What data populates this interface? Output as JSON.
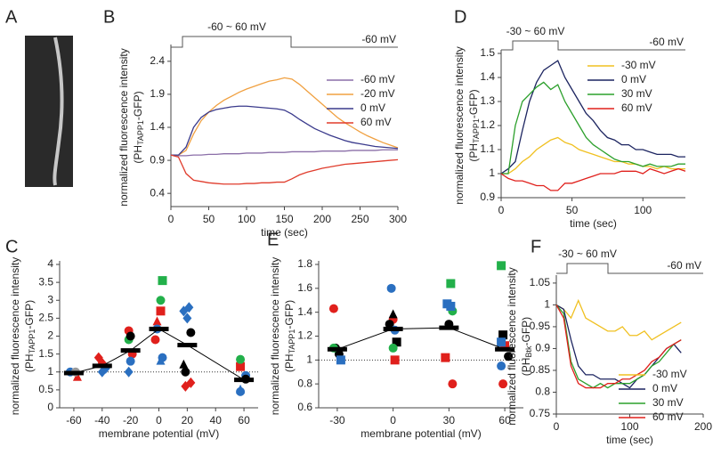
{
  "chart_data": [
    {
      "type": "image",
      "panel": "A"
    },
    {
      "type": "line",
      "panel": "B",
      "protocol": {
        "step_label": "-60 ~ 60 mV",
        "hold_label": "-60 mV"
      },
      "ylabel": {
        "line1": "normalized fluorescence intensity",
        "prefix": "(PH",
        "subscript": "TAPP1",
        "suffix": "-GFP)"
      },
      "xlabel": "time (sec)",
      "x": [
        0,
        10,
        20,
        30,
        40,
        50,
        60,
        70,
        80,
        90,
        100,
        110,
        120,
        130,
        140,
        150,
        160,
        170,
        180,
        190,
        200,
        210,
        220,
        230,
        240,
        250,
        260,
        270,
        280,
        290,
        300
      ],
      "series": [
        {
          "name": "-60 mV",
          "color": "#8b6fa8",
          "values": [
            0.98,
            0.97,
            0.97,
            0.98,
            0.98,
            0.99,
            0.99,
            1.0,
            1.0,
            1.0,
            1.01,
            1.01,
            1.01,
            1.02,
            1.02,
            1.02,
            1.03,
            1.03,
            1.03,
            1.03,
            1.04,
            1.04,
            1.04,
            1.04,
            1.05,
            1.05,
            1.05,
            1.05,
            1.06,
            1.06,
            1.06
          ]
        },
        {
          "name": "-20 mV",
          "color": "#f0a040",
          "values": [
            0.98,
            0.98,
            1.05,
            1.3,
            1.5,
            1.63,
            1.73,
            1.81,
            1.87,
            1.93,
            1.98,
            2.02,
            2.06,
            2.1,
            2.12,
            2.15,
            2.13,
            2.05,
            1.95,
            1.85,
            1.75,
            1.65,
            1.55,
            1.47,
            1.4,
            1.33,
            1.27,
            1.22,
            1.17,
            1.13,
            1.09
          ]
        },
        {
          "name": "0 mV",
          "color": "#3a3a8c",
          "values": [
            0.98,
            0.98,
            1.1,
            1.4,
            1.55,
            1.63,
            1.67,
            1.69,
            1.71,
            1.72,
            1.72,
            1.71,
            1.7,
            1.69,
            1.68,
            1.66,
            1.6,
            1.52,
            1.45,
            1.38,
            1.33,
            1.28,
            1.24,
            1.2,
            1.17,
            1.15,
            1.13,
            1.11,
            1.1,
            1.09,
            1.08
          ]
        },
        {
          "name": "60 mV",
          "color": "#e03c2c",
          "values": [
            0.98,
            0.95,
            0.7,
            0.6,
            0.58,
            0.56,
            0.55,
            0.54,
            0.54,
            0.54,
            0.55,
            0.55,
            0.56,
            0.56,
            0.57,
            0.57,
            0.62,
            0.68,
            0.72,
            0.75,
            0.78,
            0.8,
            0.82,
            0.84,
            0.85,
            0.86,
            0.87,
            0.88,
            0.89,
            0.9,
            0.91
          ]
        }
      ],
      "xlim": [
        0,
        300
      ],
      "xticks": [
        0,
        50,
        100,
        150,
        200,
        250,
        300
      ],
      "ylim": [
        0.2,
        2.6
      ],
      "yticks": [
        0.4,
        0.9,
        1.4,
        1.9,
        2.4
      ],
      "legend": "right"
    },
    {
      "type": "line",
      "panel": "D",
      "protocol": {
        "step_label": "-30 ~ 60 mV",
        "hold_label": "-60 mV"
      },
      "ylabel": {
        "line1": "normalized fluorescence intensity",
        "prefix": "(PH",
        "subscript": "TAPP1",
        "suffix": "-GFP)"
      },
      "xlabel": "time (sec)",
      "x": [
        0,
        5,
        10,
        15,
        20,
        25,
        30,
        35,
        40,
        45,
        50,
        55,
        60,
        65,
        70,
        75,
        80,
        85,
        90,
        95,
        100,
        105,
        110,
        115,
        120,
        125,
        130
      ],
      "series": [
        {
          "name": "-30 mV",
          "color": "#f0c020",
          "values": [
            1.0,
            1.0,
            1.02,
            1.05,
            1.07,
            1.1,
            1.12,
            1.14,
            1.15,
            1.13,
            1.12,
            1.1,
            1.09,
            1.08,
            1.07,
            1.06,
            1.05,
            1.05,
            1.04,
            1.04,
            1.03,
            1.03,
            1.02,
            1.03,
            1.02,
            1.02,
            1.02
          ]
        },
        {
          "name": "0 mV",
          "color": "#1c2460",
          "values": [
            1.0,
            1.02,
            1.05,
            1.18,
            1.3,
            1.38,
            1.43,
            1.45,
            1.47,
            1.4,
            1.35,
            1.3,
            1.25,
            1.22,
            1.18,
            1.15,
            1.14,
            1.12,
            1.12,
            1.1,
            1.1,
            1.09,
            1.08,
            1.08,
            1.08,
            1.07,
            1.07
          ]
        },
        {
          "name": "30 mV",
          "color": "#2ca02c",
          "values": [
            1.0,
            1.0,
            1.2,
            1.3,
            1.33,
            1.36,
            1.38,
            1.35,
            1.37,
            1.3,
            1.25,
            1.2,
            1.15,
            1.12,
            1.1,
            1.08,
            1.06,
            1.05,
            1.05,
            1.04,
            1.03,
            1.04,
            1.03,
            1.03,
            1.03,
            1.04,
            1.04
          ]
        },
        {
          "name": "60 mV",
          "color": "#e0201c",
          "values": [
            1.0,
            0.98,
            0.97,
            0.97,
            0.96,
            0.95,
            0.95,
            0.93,
            0.93,
            0.96,
            0.96,
            0.97,
            0.98,
            0.99,
            1.0,
            1.0,
            1.0,
            1.01,
            1.01,
            1.01,
            1.0,
            1.02,
            1.01,
            1.0,
            1.01,
            1.02,
            1.01
          ]
        }
      ],
      "xlim": [
        0,
        130
      ],
      "xticks": [
        0,
        50,
        100
      ],
      "ylim": [
        0.9,
        1.5
      ],
      "yticks": [
        0.9,
        1,
        1.1,
        1.2,
        1.3,
        1.4,
        1.5
      ],
      "legend": "upper right"
    },
    {
      "type": "scatter",
      "panel": "C",
      "ylabel": {
        "line1": "normalized fluorescence intensity",
        "prefix": "(PH",
        "subscript": "TAPP1",
        "suffix": "-GFP)"
      },
      "xlabel": "membrane potential (mV)",
      "series": [
        {
          "color": "#e0201c",
          "marker": "diamond",
          "x": [
            -40,
            -40,
            20,
            20
          ],
          "values": [
            1.4,
            1.25,
            0.7,
            0.6
          ]
        },
        {
          "color": "#e0201c",
          "marker": "square",
          "x": [
            0,
            60
          ],
          "values": [
            2.7,
            1.15
          ]
        },
        {
          "color": "#e0201c",
          "marker": "circle",
          "x": [
            -20,
            -20,
            0
          ],
          "values": [
            2.15,
            1.5,
            1.9
          ]
        },
        {
          "color": "#e0201c",
          "marker": "triangle",
          "x": [
            -60,
            0
          ],
          "values": [
            0.85,
            2.4
          ]
        },
        {
          "color": "#2a6fc0",
          "marker": "diamond",
          "x": [
            -40,
            -40,
            -20,
            20,
            20,
            20
          ],
          "values": [
            1.0,
            1.1,
            1.0,
            2.8,
            2.7,
            2.5
          ]
        },
        {
          "color": "#2a6fc0",
          "marker": "circle",
          "x": [
            -60,
            -20,
            0,
            0,
            60,
            60
          ],
          "values": [
            1.0,
            1.3,
            1.4,
            2.2,
            0.9,
            0.45
          ]
        },
        {
          "color": "#2a6fc0",
          "marker": "triangle",
          "x": [
            0,
            60
          ],
          "values": [
            1.3,
            0.5
          ]
        },
        {
          "color": "#22b04a",
          "marker": "circle",
          "x": [
            -20,
            0,
            60
          ],
          "values": [
            1.9,
            3.0,
            1.35
          ]
        },
        {
          "color": "#22b04a",
          "marker": "square",
          "x": [
            0
          ],
          "values": [
            3.55
          ]
        },
        {
          "color": "#000000",
          "marker": "circle",
          "x": [
            -20,
            20,
            20,
            60
          ],
          "values": [
            2.0,
            2.1,
            1.0,
            0.8
          ]
        },
        {
          "color": "#000000",
          "marker": "triangle",
          "x": [
            20
          ],
          "values": [
            1.2
          ]
        },
        {
          "color": "#999999",
          "marker": "circle",
          "x": [
            -60
          ],
          "values": [
            1.0
          ]
        },
        {
          "color": "#000000",
          "marker": "bar",
          "x": [
            -60,
            -40,
            -20,
            0,
            20,
            60
          ],
          "values": [
            0.97,
            1.17,
            1.6,
            2.2,
            1.75,
            0.78
          ]
        }
      ],
      "ref_line": 1,
      "xlim": [
        -70,
        70
      ],
      "xticks": [
        -60,
        -40,
        -20,
        0,
        20,
        40,
        60
      ],
      "ylim": [
        0,
        4
      ],
      "yticks": [
        0,
        0.5,
        1,
        1.5,
        2,
        2.5,
        3,
        3.5,
        4
      ]
    },
    {
      "type": "scatter",
      "panel": "E",
      "ylabel": {
        "line1": "normalized fluorescence intensity",
        "prefix": "(PH",
        "subscript": "TAPP1",
        "suffix": "-GFP)"
      },
      "xlabel": "membrane potential (mV)",
      "series": [
        {
          "color": "#e0201c",
          "marker": "circle",
          "x": [
            -30,
            0,
            30,
            60
          ],
          "values": [
            1.43,
            1.34,
            0.8,
            0.8
          ]
        },
        {
          "color": "#e0201c",
          "marker": "square",
          "x": [
            0,
            30,
            60
          ],
          "values": [
            1.0,
            1.02,
            1.12
          ]
        },
        {
          "color": "#000000",
          "marker": "circle",
          "x": [
            -30,
            -30,
            0,
            30,
            60
          ],
          "values": [
            1.1,
            1.05,
            1.3,
            1.3,
            1.03
          ]
        },
        {
          "color": "#000000",
          "marker": "square",
          "x": [
            0,
            60
          ],
          "values": [
            1.15,
            1.21
          ]
        },
        {
          "color": "#000000",
          "marker": "triangle",
          "x": [
            0
          ],
          "values": [
            1.38
          ]
        },
        {
          "color": "#22b04a",
          "marker": "circle",
          "x": [
            -30,
            0,
            30
          ],
          "values": [
            1.1,
            1.1,
            1.41
          ]
        },
        {
          "color": "#22b04a",
          "marker": "square",
          "x": [
            30,
            60
          ],
          "values": [
            1.64,
            1.79
          ]
        },
        {
          "color": "#2a6fc0",
          "marker": "circle",
          "x": [
            0,
            0,
            60
          ],
          "values": [
            1.6,
            1.25,
            0.95
          ]
        },
        {
          "color": "#2a6fc0",
          "marker": "square",
          "x": [
            -30,
            30,
            30,
            60
          ],
          "values": [
            1.0,
            1.47,
            1.45,
            1.15
          ]
        },
        {
          "color": "#000000",
          "marker": "bar",
          "x": [
            -30,
            0,
            30,
            60
          ],
          "values": [
            1.09,
            1.26,
            1.27,
            1.09
          ]
        }
      ],
      "ref_line": 1,
      "xlim": [
        -40,
        70
      ],
      "xticks": [
        -30,
        0,
        30,
        60
      ],
      "ylim": [
        0.6,
        1.8
      ],
      "yticks": [
        0.6,
        0.8,
        1,
        1.2,
        1.4,
        1.6,
        1.8
      ]
    },
    {
      "type": "line",
      "panel": "F",
      "protocol": {
        "step_label": "-30 ~ 60 mV",
        "hold_label": "-60 mV"
      },
      "ylabel": {
        "line1": "normalized fluorescence intensity",
        "prefix": "(PH",
        "subscript": "Btk",
        "suffix": "-GFP)"
      },
      "xlabel": "time (sec)",
      "x": [
        0,
        10,
        20,
        30,
        40,
        50,
        60,
        70,
        80,
        90,
        100,
        110,
        120,
        130,
        140,
        150,
        160,
        170
      ],
      "series": [
        {
          "name": "-30 mV",
          "color": "#f0c020",
          "values": [
            1.0,
            0.99,
            0.97,
            1.01,
            0.97,
            0.96,
            0.95,
            0.94,
            0.94,
            0.95,
            0.93,
            0.93,
            0.94,
            0.92,
            0.93,
            0.94,
            0.95,
            0.96
          ]
        },
        {
          "name": "0 mV",
          "color": "#1c2460",
          "values": [
            1.0,
            0.99,
            0.92,
            0.86,
            0.84,
            0.84,
            0.83,
            0.83,
            0.83,
            0.82,
            0.81,
            0.83,
            0.84,
            0.86,
            0.88,
            0.9,
            0.91,
            0.89
          ]
        },
        {
          "name": "30 mV",
          "color": "#2ca02c",
          "values": [
            1.0,
            0.98,
            0.87,
            0.83,
            0.82,
            0.81,
            0.82,
            0.81,
            0.82,
            0.82,
            0.82,
            0.83,
            0.84,
            0.86,
            0.87,
            0.89,
            0.91,
            0.92
          ]
        },
        {
          "name": "60 mV",
          "color": "#e0201c",
          "values": [
            1.0,
            0.97,
            0.86,
            0.82,
            0.81,
            0.81,
            0.81,
            0.82,
            0.82,
            0.83,
            0.83,
            0.84,
            0.85,
            0.87,
            0.88,
            0.9,
            0.91,
            0.92
          ]
        }
      ],
      "xlim": [
        0,
        200
      ],
      "xticks": [
        0,
        100,
        200
      ],
      "ylim": [
        0.75,
        1.06
      ],
      "yticks": [
        0.75,
        0.8,
        0.85,
        0.9,
        0.95,
        1,
        1.05
      ],
      "legend": "lower right"
    }
  ]
}
